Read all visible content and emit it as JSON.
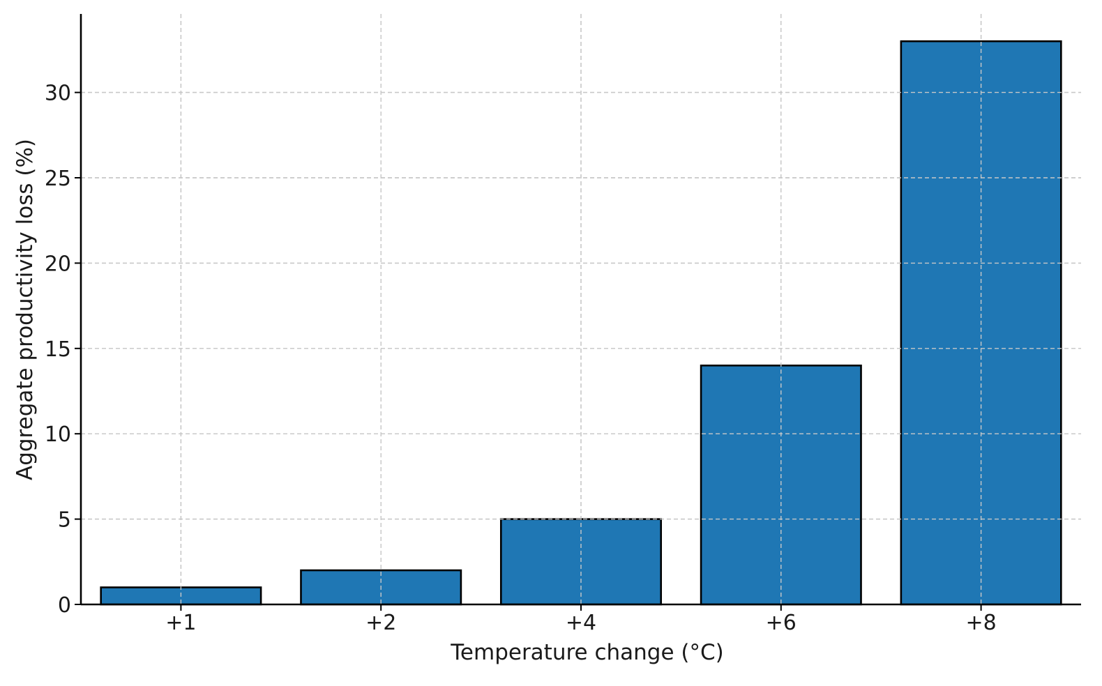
{
  "chart_data": {
    "type": "bar",
    "categories": [
      "+1",
      "+2",
      "+4",
      "+6",
      "+8"
    ],
    "values": [
      1,
      2,
      5,
      14,
      33
    ],
    "title": "",
    "xlabel": "Temperature change (°C)",
    "ylabel": "Aggregate productivity loss (%)",
    "ylim": [
      0,
      34.6
    ],
    "yticks": [
      0,
      5,
      10,
      15,
      20,
      25,
      30
    ],
    "grid": true,
    "bar_color": "#1f77b4",
    "bar_edge_color": "#000000"
  }
}
